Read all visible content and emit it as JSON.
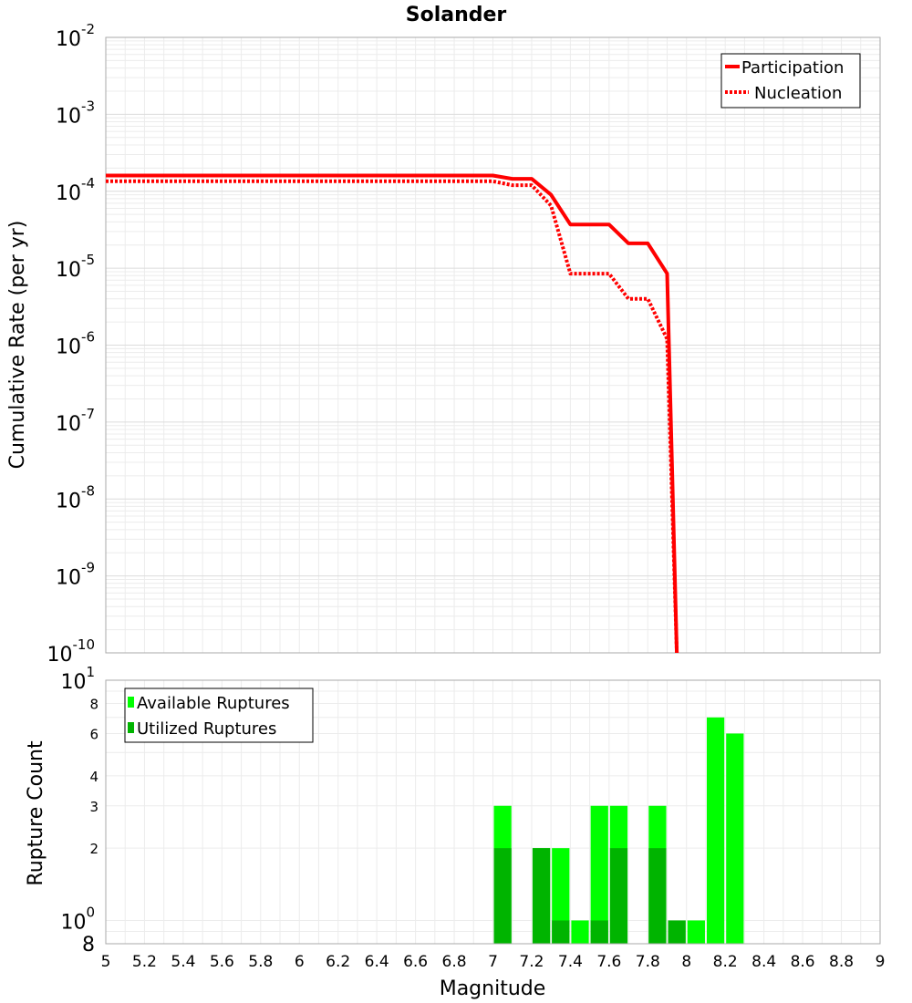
{
  "chart_data": [
    {
      "type": "line",
      "title": "Solander",
      "ylabel": "Cumulative Rate (per yr)",
      "xlabel": "",
      "xlim": [
        5,
        9
      ],
      "ylim": [
        1e-10,
        0.01
      ],
      "yscale": "log",
      "grid": true,
      "legend_position": "top-right",
      "y_tick_labels": [
        {
          "base": "10",
          "exp": "-2"
        },
        {
          "base": "10",
          "exp": "-3"
        },
        {
          "base": "10",
          "exp": "-4"
        },
        {
          "base": "10",
          "exp": "-5"
        },
        {
          "base": "10",
          "exp": "-6"
        },
        {
          "base": "10",
          "exp": "-7"
        },
        {
          "base": "10",
          "exp": "-8"
        },
        {
          "base": "10",
          "exp": "-9"
        },
        {
          "base": "10",
          "exp": "-10"
        }
      ],
      "series": [
        {
          "name": "Participation",
          "style": "solid",
          "color": "#ff0000",
          "x": [
            5.0,
            7.0,
            7.1,
            7.2,
            7.3,
            7.4,
            7.5,
            7.6,
            7.7,
            7.8,
            7.9,
            7.95
          ],
          "y": [
            0.00016,
            0.00016,
            0.000145,
            0.000145,
            9e-05,
            3.7e-05,
            3.7e-05,
            3.7e-05,
            2.1e-05,
            2.1e-05,
            8.5e-06,
            1e-10
          ]
        },
        {
          "name": "Nucleation",
          "style": "dotted",
          "color": "#ff0000",
          "x": [
            5.0,
            7.0,
            7.1,
            7.2,
            7.3,
            7.4,
            7.5,
            7.6,
            7.7,
            7.8,
            7.9,
            7.95
          ],
          "y": [
            0.000135,
            0.000135,
            0.00012,
            0.00012,
            6.5e-05,
            8.5e-06,
            8.5e-06,
            8.5e-06,
            4e-06,
            4e-06,
            1.2e-06,
            1e-10
          ]
        }
      ]
    },
    {
      "type": "bar",
      "title": "",
      "xlabel": "Magnitude",
      "ylabel": "Rupture Count",
      "xlim": [
        5,
        9
      ],
      "ylim": [
        0.8,
        10
      ],
      "yscale": "log",
      "grid": true,
      "legend_position": "top-left",
      "x_ticks": [
        "5",
        "5.2",
        "5.4",
        "5.6",
        "5.8",
        "6",
        "6.2",
        "6.4",
        "6.6",
        "6.8",
        "7",
        "7.2",
        "7.4",
        "7.6",
        "7.8",
        "8",
        "8.2",
        "8.4",
        "8.6",
        "8.8",
        "9"
      ],
      "y_tick_labels": [
        {
          "value": 10,
          "base": "10",
          "exp": "1",
          "big": true
        },
        {
          "value": 8,
          "label": "8"
        },
        {
          "value": 6,
          "label": "6"
        },
        {
          "value": 4,
          "label": "4"
        },
        {
          "value": 3,
          "label": "3"
        },
        {
          "value": 2,
          "label": "2"
        },
        {
          "value": 1,
          "base": "10",
          "exp": "0",
          "big": true
        },
        {
          "value": 0.8,
          "label": "8",
          "big": true
        }
      ],
      "bar_centers": [
        7.05,
        7.25,
        7.35,
        7.45,
        7.55,
        7.65,
        7.85,
        7.95,
        8.05,
        8.15,
        8.25
      ],
      "series": [
        {
          "name": "Available Ruptures",
          "color": "#00ff00",
          "values": [
            3,
            2,
            2,
            1,
            3,
            3,
            3,
            1,
            1,
            7,
            6
          ]
        },
        {
          "name": "Utilized Ruptures",
          "color": "#00b400",
          "values": [
            2,
            2,
            1,
            0,
            1,
            2,
            2,
            1,
            0,
            0,
            0
          ]
        }
      ]
    }
  ]
}
